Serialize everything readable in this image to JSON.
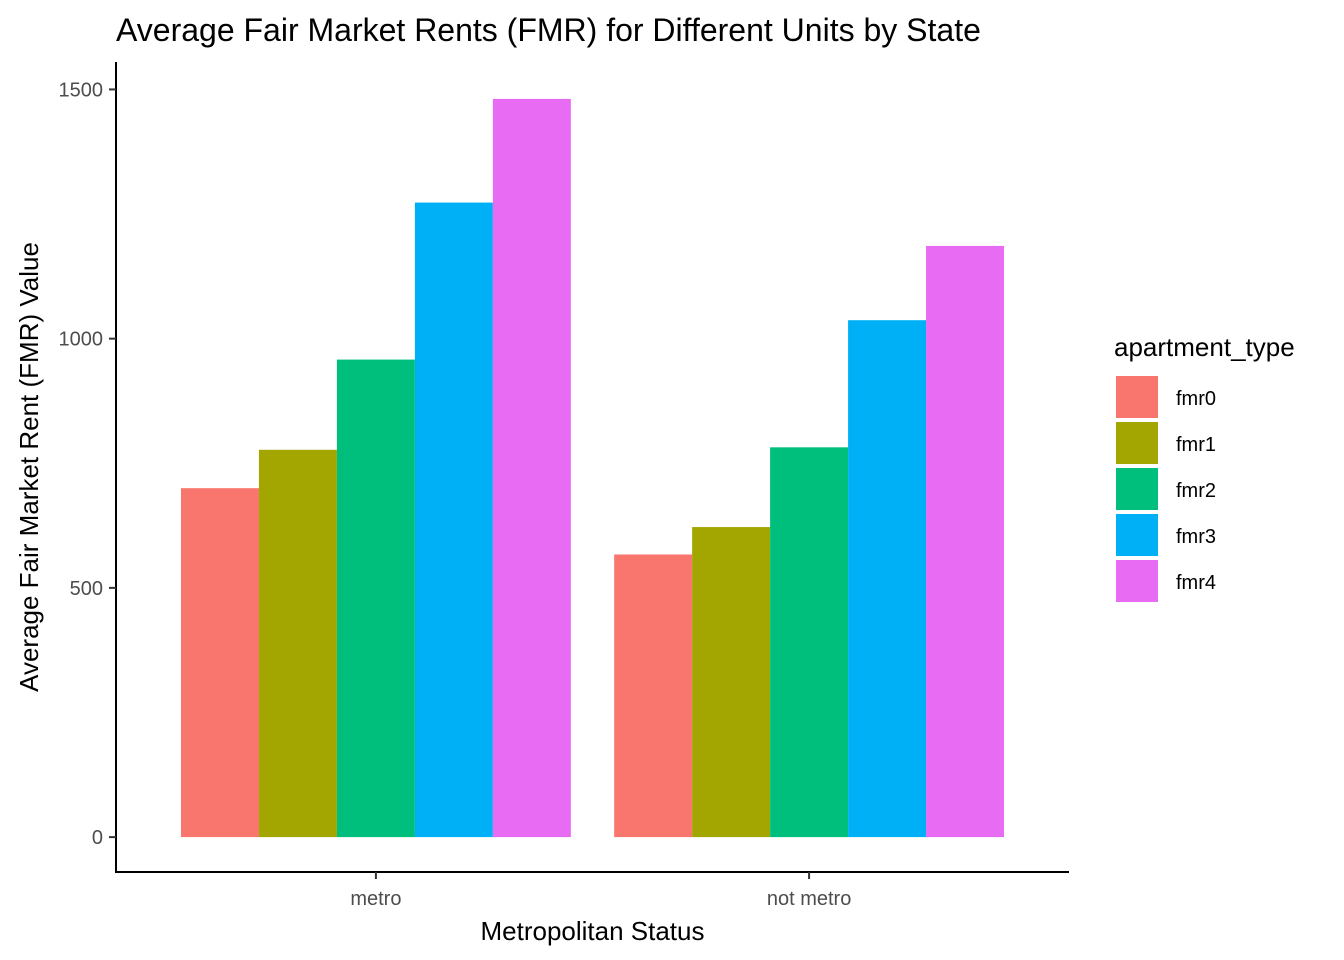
{
  "chart_data": {
    "type": "bar",
    "title": "Average Fair Market Rents (FMR) for Different Units by State",
    "xlabel": "Metropolitan Status",
    "ylabel": "Average Fair Market Rent (FMR) Value",
    "categories": [
      "metro",
      "not metro"
    ],
    "series": [
      {
        "name": "fmr0",
        "color": "#F8766D",
        "values": [
          700,
          567
        ]
      },
      {
        "name": "fmr1",
        "color": "#A3A500",
        "values": [
          777,
          622
        ]
      },
      {
        "name": "fmr2",
        "color": "#00BF7D",
        "values": [
          958,
          782
        ]
      },
      {
        "name": "fmr3",
        "color": "#00B0F6",
        "values": [
          1273,
          1037
        ]
      },
      {
        "name": "fmr4",
        "color": "#E76BF3",
        "values": [
          1481,
          1186
        ]
      }
    ],
    "yticks": [
      0,
      500,
      1000,
      1500
    ],
    "ylim": [
      -70,
      1555
    ],
    "grid": false,
    "legend": {
      "title": "apartment_type",
      "position": "right"
    }
  }
}
